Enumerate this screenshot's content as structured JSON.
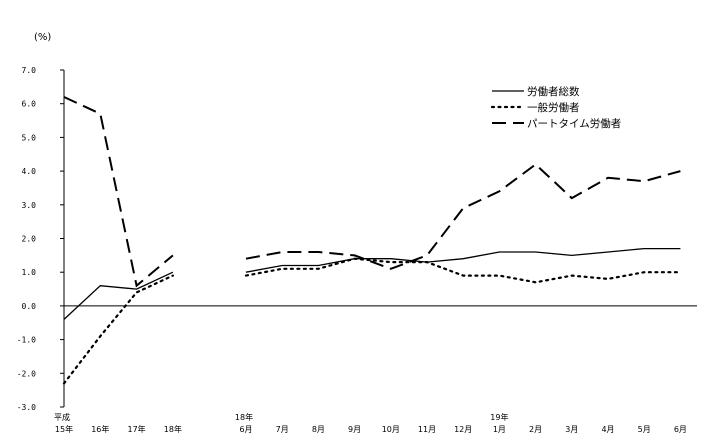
{
  "chart_data": {
    "type": "line",
    "unit_label": "(%)",
    "ylim": [
      -3.0,
      7.0
    ],
    "y_ticks": [
      "7.0",
      "6.0",
      "5.0",
      "4.0",
      "3.0",
      "2.0",
      "1.0",
      "0.0",
      "-1.0",
      "-2.0",
      "-3.0"
    ],
    "grid": false,
    "legend_position": "top-right",
    "groups": [
      {
        "categories": [
          "15年",
          "16年",
          "17年",
          "18年"
        ],
        "first_prefix": "平成",
        "series": [
          {
            "name": "労働者総数",
            "values": [
              -0.4,
              0.6,
              0.5,
              1.0
            ]
          },
          {
            "name": "一般労働者",
            "values": [
              -2.3,
              -0.9,
              0.4,
              0.9
            ]
          },
          {
            "name": "パートタイム労働者",
            "values": [
              6.2,
              5.7,
              0.6,
              1.5
            ]
          }
        ]
      },
      {
        "categories": [
          "6月",
          "7月",
          "8月",
          "9月",
          "10月",
          "11月",
          "12月",
          "1月",
          "2月",
          "3月",
          "4月",
          "5月",
          "6月"
        ],
        "first_prefix": "18年",
        "year_marks": [
          {
            "index": 7,
            "label": "19年"
          }
        ],
        "series": [
          {
            "name": "労働者総数",
            "values": [
              1.0,
              1.2,
              1.2,
              1.4,
              1.4,
              1.3,
              1.4,
              1.6,
              1.6,
              1.5,
              1.6,
              1.7,
              1.7
            ]
          },
          {
            "name": "一般労働者",
            "values": [
              0.9,
              1.1,
              1.1,
              1.4,
              1.3,
              1.3,
              0.9,
              0.9,
              0.7,
              0.9,
              0.8,
              1.0,
              1.0
            ]
          },
          {
            "name": "パートタイム労働者",
            "values": [
              1.4,
              1.6,
              1.6,
              1.5,
              1.1,
              1.5,
              2.9,
              3.4,
              4.2,
              3.2,
              3.8,
              3.7,
              4.0
            ]
          }
        ]
      }
    ],
    "legend": [
      {
        "name": "労働者総数",
        "style": "solid"
      },
      {
        "name": "一般労働者",
        "style": "dotted"
      },
      {
        "name": "パートタイム労働者",
        "style": "dashed"
      }
    ]
  }
}
